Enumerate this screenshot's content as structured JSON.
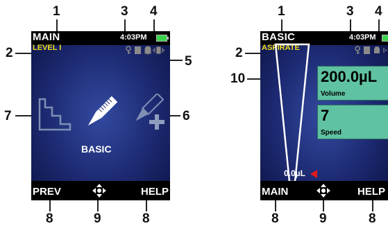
{
  "left_screen": {
    "title": "MAIN",
    "submode": "LEVEL I",
    "time": "4:03PM",
    "mode_label": "BASIC",
    "softkeys": {
      "left": "PREV",
      "right": "HELP"
    },
    "icons": [
      "settings-steps-icon",
      "pipette-icon",
      "pipette-add-icon"
    ]
  },
  "right_screen": {
    "title": "BASIC",
    "submode": "ASPIRATE",
    "time": "4:03PM",
    "volume_readout": "0.0µL",
    "volume_panel": {
      "value": "200.0µL",
      "label": "Volume"
    },
    "speed_panel": {
      "value": "7",
      "label": "Speed"
    },
    "softkeys": {
      "left": "MAIN",
      "right": "HELP"
    }
  },
  "callouts": {
    "c1": "1",
    "c2": "2",
    "c3": "3",
    "c4": "4",
    "c5": "5",
    "c6": "6",
    "c7": "7",
    "c8": "8",
    "c9": "9",
    "c10": "10"
  },
  "colors": {
    "submode": "#f3df1c",
    "battery": "#3bd24b",
    "panel": "#5fc2a2",
    "indicator": "#e01a1a"
  }
}
